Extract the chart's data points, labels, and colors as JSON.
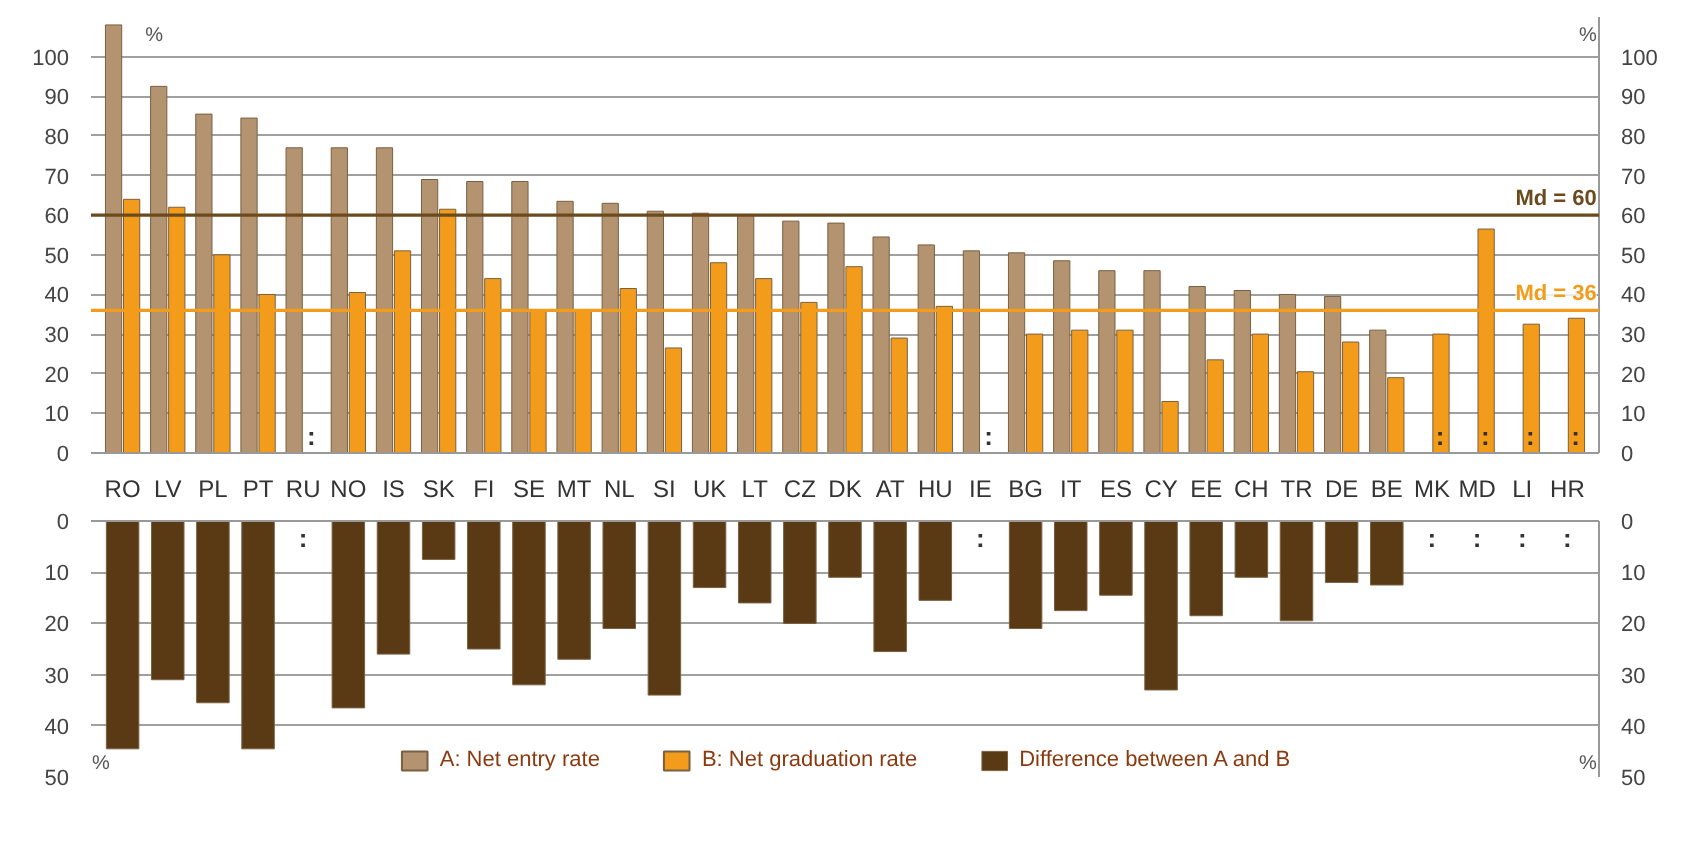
{
  "chart_data": [
    {
      "type": "bar",
      "categories": [
        "RO",
        "LV",
        "PL",
        "PT",
        "RU",
        "NO",
        "IS",
        "SK",
        "FI",
        "SE",
        "MT",
        "NL",
        "SI",
        "UK",
        "LT",
        "CZ",
        "DK",
        "AT",
        "HU",
        "IE",
        "BG",
        "IT",
        "ES",
        "CY",
        "EE",
        "CH",
        "TR",
        "DE",
        "BE",
        "MK",
        "MD",
        "LI",
        "HR"
      ],
      "series": [
        {
          "name": "A: Net entry rate",
          "color": "#b39370",
          "values": [
            108,
            92.5,
            85.5,
            84.5,
            77,
            77,
            77,
            69,
            68.5,
            68.5,
            63.5,
            63,
            61,
            60.5,
            60,
            58.5,
            58,
            54.5,
            52.5,
            51,
            50.5,
            48.5,
            46,
            46,
            42,
            41,
            40,
            39.5,
            31,
            null,
            null,
            null,
            null
          ]
        },
        {
          "name": "B: Net graduation rate",
          "color": "#f39c1c",
          "values": [
            64,
            62,
            50,
            40,
            null,
            40.5,
            51,
            61.5,
            44,
            36,
            36,
            41.5,
            26.5,
            48,
            44,
            38,
            47,
            29,
            37,
            null,
            30,
            31,
            31,
            13,
            23.5,
            30,
            20.5,
            28,
            19,
            30,
            56.5,
            32.5,
            34
          ]
        }
      ],
      "ylim": [
        0,
        110
      ],
      "yticks": [
        0,
        10,
        20,
        30,
        40,
        50,
        60,
        70,
        80,
        90,
        100
      ],
      "y2lim": [
        0,
        110
      ],
      "y2ticks": [
        0,
        10,
        20,
        30,
        40,
        50,
        60,
        70,
        80,
        90,
        100
      ],
      "grid": "y",
      "legend": "bottom",
      "ref_lines": [
        {
          "axis": "y",
          "value": 60,
          "label": "Md = 60",
          "color": "#6b4a1e"
        },
        {
          "axis": "y",
          "value": 36,
          "label": "Md = 36",
          "color": "#f39c1c"
        }
      ],
      "annotations": [
        "%",
        "%",
        {
          "text": ":",
          "x": "RU",
          "y": 0
        },
        {
          "text": ":",
          "x": "IE",
          "y": 0
        },
        {
          "text": ":",
          "x": "MK",
          "y": 0
        },
        {
          "text": ":",
          "x": "MD",
          "y": 0
        },
        {
          "text": ":",
          "x": "LI",
          "y": 0
        },
        {
          "text": ":",
          "x": "HR",
          "y": 0
        }
      ]
    },
    {
      "type": "bar",
      "categories": [
        "RO",
        "LV",
        "PL",
        "PT",
        "RU",
        "NO",
        "IS",
        "SK",
        "FI",
        "SE",
        "MT",
        "NL",
        "SI",
        "UK",
        "LT",
        "CZ",
        "DK",
        "AT",
        "HU",
        "IE",
        "BG",
        "IT",
        "ES",
        "CY",
        "EE",
        "CH",
        "TR",
        "DE",
        "BE",
        "MK",
        "MD",
        "LI",
        "HR"
      ],
      "series": [
        {
          "name": "Difference between A and B",
          "color": "#5a3a14",
          "values": [
            44.5,
            31,
            35.5,
            44.5,
            null,
            36.5,
            26,
            7.5,
            25,
            32,
            27,
            21,
            34,
            13,
            16,
            20,
            11,
            25.5,
            15.5,
            null,
            21,
            17.5,
            14.5,
            33,
            18.5,
            11,
            19.5,
            12,
            12.5,
            null,
            null,
            null,
            null
          ]
        }
      ],
      "ylim": [
        50,
        0
      ],
      "yticks": [
        0,
        10,
        20,
        30,
        40,
        50
      ],
      "y2lim": [
        50,
        0
      ],
      "y2ticks": [
        0,
        10,
        20,
        30,
        40,
        50
      ],
      "grid": "y",
      "legend": "bottom",
      "tick_labels": "y",
      "annotations": [
        "%",
        "%",
        ":",
        ":",
        ":",
        ":",
        ":",
        ":"
      ]
    }
  ]
}
